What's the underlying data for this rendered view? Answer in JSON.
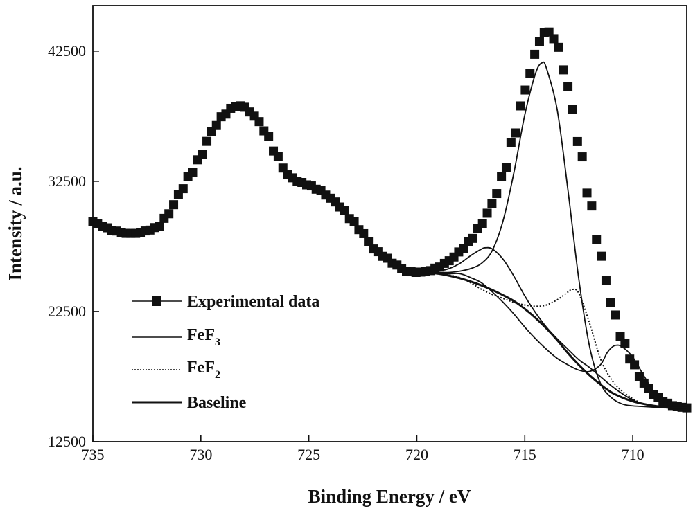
{
  "chart_data": {
    "type": "line",
    "title": "",
    "xlabel": "Binding Energy / eV",
    "ylabel": "Intensity / a.u.",
    "xlim": [
      735,
      707.5
    ],
    "ylim": [
      12500,
      46000
    ],
    "x_reversed": true,
    "xticks": [
      735,
      730,
      725,
      720,
      715,
      710
    ],
    "yticks": [
      12500,
      22500,
      32500,
      42500
    ],
    "grid": false,
    "legend_position": "lower-left",
    "legend": [
      {
        "label": "Experimental data",
        "style": "line-square-marker"
      },
      {
        "label": "FeF",
        "subscript": "3",
        "style": "solid-thin"
      },
      {
        "label": "FeF",
        "subscript": "2",
        "style": "dotted"
      },
      {
        "label": "Baseline",
        "style": "solid-thick"
      }
    ],
    "series": [
      {
        "name": "Experimental data",
        "style": "marker",
        "x": [
          735,
          734.5,
          734,
          733.5,
          733,
          732.5,
          732,
          731.5,
          731,
          730.5,
          730,
          729.5,
          729,
          728.5,
          728.2,
          728,
          727.5,
          727,
          726.5,
          726,
          725.5,
          725,
          724.5,
          724,
          723.5,
          723,
          722.5,
          722,
          721.5,
          721,
          720.5,
          720,
          719.5,
          719,
          718.5,
          718,
          717.5,
          717,
          716.5,
          716,
          715.5,
          715,
          714.5,
          714.2,
          714,
          713.8,
          713.5,
          713,
          712.5,
          712,
          711.5,
          711,
          710.5,
          710,
          709.5,
          709,
          708.5,
          708,
          707.5
        ],
        "y": [
          29400,
          29000,
          28700,
          28500,
          28500,
          28700,
          29000,
          30000,
          31500,
          33000,
          34500,
          36300,
          37500,
          38200,
          38300,
          38200,
          37500,
          36300,
          34500,
          33000,
          32500,
          32200,
          31800,
          31200,
          30500,
          29500,
          28500,
          27300,
          26700,
          26100,
          25600,
          25500,
          25600,
          25900,
          26400,
          27100,
          28000,
          29200,
          30800,
          33000,
          36000,
          39500,
          42300,
          43700,
          44100,
          43900,
          42900,
          39800,
          35400,
          31000,
          26800,
          23200,
          20400,
          18500,
          17000,
          16100,
          15500,
          15200,
          15100
        ]
      },
      {
        "name": "FeF3",
        "style": "solid-thin",
        "x": [
          719.5,
          719,
          718.5,
          718,
          717.5,
          717,
          716.5,
          716,
          715.5,
          715,
          714.5,
          714.2,
          714,
          713.5,
          713,
          712.5,
          712,
          711.5,
          711,
          710.5,
          710,
          709.5,
          709,
          708.5,
          708
        ],
        "y": [
          25500,
          25500,
          25500,
          25600,
          25800,
          26200,
          27200,
          29500,
          33200,
          37600,
          40800,
          41600,
          41200,
          38000,
          31800,
          25000,
          19800,
          17000,
          15900,
          15400,
          15250,
          15200,
          15150,
          15100,
          15100
        ]
      },
      {
        "name": "FeF3",
        "style": "solid-thin",
        "x": [
          719.5,
          719,
          718.5,
          718,
          717.5,
          717,
          716.8,
          716.5,
          716,
          715.5,
          715,
          714.5,
          714,
          713.5,
          713,
          712.5,
          712,
          711.5,
          711,
          710.5,
          710,
          709.5,
          709,
          708.5,
          708
        ],
        "y": [
          25500,
          25600,
          25800,
          26200,
          26800,
          27300,
          27400,
          27300,
          26500,
          25200,
          23700,
          22400,
          21300,
          20400,
          19600,
          18800,
          18200,
          17500,
          16800,
          16200,
          15700,
          15400,
          15200,
          15100,
          15100
        ]
      },
      {
        "name": "FeF3",
        "style": "solid-thin",
        "x": [
          719.5,
          719,
          718.5,
          718,
          717.5,
          717,
          716.5,
          716,
          715.5,
          715,
          714.5,
          714,
          713.5,
          713,
          712.5,
          712,
          711.5,
          711.2,
          711,
          710.8,
          710.5,
          710,
          709.5,
          709,
          708.5,
          708
        ],
        "y": [
          25500,
          25400,
          25400,
          25400,
          25100,
          24700,
          24000,
          23200,
          22300,
          21300,
          20400,
          19600,
          18900,
          18400,
          18000,
          17900,
          18400,
          19300,
          19700,
          19900,
          19800,
          19000,
          17600,
          16300,
          15500,
          15100
        ]
      },
      {
        "name": "FeF2",
        "style": "dotted",
        "x": [
          719.5,
          719,
          718.5,
          718,
          717.5,
          717,
          716.5,
          716,
          715.5,
          715,
          714.5,
          714,
          713.5,
          713,
          712.8,
          712.5,
          712,
          711.5,
          711,
          710.5,
          710,
          709.5,
          709,
          708.5,
          708
        ],
        "y": [
          25500,
          25400,
          25300,
          25100,
          24700,
          24200,
          23800,
          23500,
          23200,
          23000,
          22900,
          23000,
          23400,
          24000,
          24200,
          23900,
          21600,
          18900,
          17300,
          16400,
          15800,
          15400,
          15200,
          15100,
          15100
        ]
      },
      {
        "name": "Baseline",
        "style": "solid-thick",
        "x": [
          719.5,
          719,
          718.5,
          718,
          717.5,
          717,
          716.5,
          716,
          715.5,
          715,
          714.5,
          714,
          713.5,
          713,
          712.5,
          712,
          711.5,
          711,
          710.5,
          710,
          709.5,
          709,
          708.5,
          708,
          707.5
        ],
        "y": [
          25500,
          25400,
          25250,
          25050,
          24800,
          24500,
          24150,
          23750,
          23300,
          22700,
          22000,
          21200,
          20300,
          19300,
          18400,
          17600,
          16900,
          16300,
          15900,
          15600,
          15400,
          15250,
          15150,
          15100,
          15100
        ]
      }
    ]
  }
}
